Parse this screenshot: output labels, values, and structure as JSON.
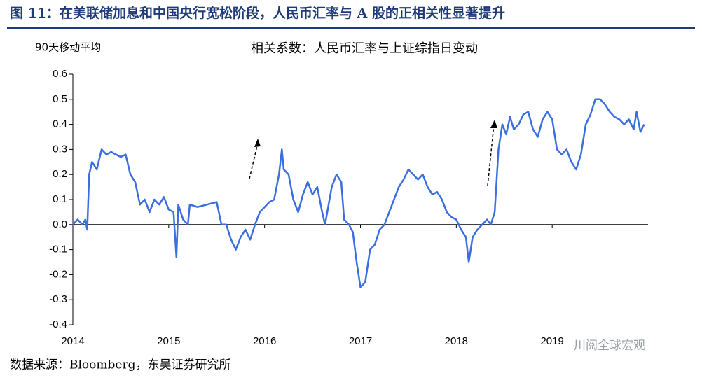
{
  "chart_data": {
    "type": "line",
    "title": "图 11：在美联储加息和中国央行宽松阶段，人民币汇率与 A 股的正相关性显著提升",
    "subtitle": "相关系数：人民币汇率与上证综指日变动",
    "y_label": "90天移动平均",
    "source": "数据来源：Bloomberg，东吴证券研究所",
    "watermark": "川阅全球宏观",
    "xlim": [
      2014,
      2020
    ],
    "xticks": [
      2014,
      2015,
      2016,
      2017,
      2018,
      2019
    ],
    "ylim": [
      -0.4,
      0.6
    ],
    "yticks": [
      -0.4,
      -0.3,
      -0.2,
      -0.1,
      {
        "value": 0,
        "label": "0.0"
      },
      0.1,
      0.2,
      0.3,
      0.4,
      0.5,
      0.6
    ],
    "x": [
      2014.0,
      2014.05,
      2014.1,
      2014.13,
      2014.15,
      2014.17,
      2014.2,
      2014.25,
      2014.3,
      2014.35,
      2014.4,
      2014.45,
      2014.5,
      2014.55,
      2014.6,
      2014.65,
      2014.7,
      2014.75,
      2014.8,
      2014.85,
      2014.9,
      2014.95,
      2015.0,
      2015.05,
      2015.08,
      2015.1,
      2015.15,
      2015.2,
      2015.22,
      2015.3,
      2015.4,
      2015.5,
      2015.55,
      2015.6,
      2015.65,
      2015.7,
      2015.75,
      2015.8,
      2015.85,
      2015.9,
      2015.95,
      2016.0,
      2016.05,
      2016.1,
      2016.15,
      2016.18,
      2016.2,
      2016.25,
      2016.3,
      2016.35,
      2016.4,
      2016.45,
      2016.5,
      2016.55,
      2016.6,
      2016.63,
      2016.7,
      2016.75,
      2016.8,
      2016.83,
      2016.88,
      2016.92,
      2016.96,
      2017.0,
      2017.05,
      2017.1,
      2017.15,
      2017.2,
      2017.25,
      2017.3,
      2017.35,
      2017.4,
      2017.45,
      2017.5,
      2017.55,
      2017.6,
      2017.65,
      2017.7,
      2017.75,
      2017.8,
      2017.85,
      2017.9,
      2017.95,
      2018.0,
      2018.05,
      2018.1,
      2018.13,
      2018.17,
      2018.22,
      2018.27,
      2018.32,
      2018.36,
      2018.4,
      2018.44,
      2018.48,
      2018.52,
      2018.56,
      2018.6,
      2018.65,
      2018.7,
      2018.75,
      2018.8,
      2018.85,
      2018.9,
      2018.95,
      2019.0,
      2019.05,
      2019.1,
      2019.15,
      2019.2,
      2019.25,
      2019.3,
      2019.35,
      2019.4,
      2019.45,
      2019.5,
      2019.55,
      2019.6,
      2019.65,
      2019.7,
      2019.75,
      2019.8,
      2019.85,
      2019.88,
      2019.92,
      2019.96
    ],
    "series": [
      {
        "name": "相关系数",
        "color": "#3b6ee0",
        "values": [
          0.0,
          0.02,
          0.0,
          0.02,
          -0.02,
          0.2,
          0.25,
          0.22,
          0.3,
          0.28,
          0.29,
          0.28,
          0.27,
          0.28,
          0.2,
          0.17,
          0.08,
          0.1,
          0.05,
          0.1,
          0.08,
          0.11,
          0.06,
          0.05,
          -0.13,
          0.08,
          0.02,
          0.0,
          0.08,
          0.07,
          0.08,
          0.09,
          0.0,
          0.0,
          -0.06,
          -0.1,
          -0.05,
          -0.02,
          -0.06,
          0.0,
          0.05,
          0.07,
          0.09,
          0.1,
          0.2,
          0.3,
          0.22,
          0.2,
          0.1,
          0.05,
          0.12,
          0.17,
          0.12,
          0.15,
          0.05,
          0.0,
          0.15,
          0.2,
          0.17,
          0.02,
          0.0,
          -0.03,
          -0.15,
          -0.25,
          -0.23,
          -0.1,
          -0.08,
          -0.02,
          0.0,
          0.05,
          0.1,
          0.15,
          0.18,
          0.22,
          0.2,
          0.18,
          0.2,
          0.15,
          0.12,
          0.13,
          0.1,
          0.05,
          0.03,
          0.02,
          -0.02,
          -0.05,
          -0.15,
          -0.05,
          -0.02,
          0.0,
          0.02,
          0.0,
          0.05,
          0.3,
          0.4,
          0.36,
          0.43,
          0.38,
          0.4,
          0.44,
          0.45,
          0.38,
          0.35,
          0.42,
          0.45,
          0.42,
          0.3,
          0.28,
          0.3,
          0.25,
          0.22,
          0.28,
          0.4,
          0.44,
          0.5,
          0.5,
          0.48,
          0.45,
          0.43,
          0.42,
          0.4,
          0.42,
          0.38,
          0.45,
          0.37,
          0.4
        ]
      }
    ]
  }
}
